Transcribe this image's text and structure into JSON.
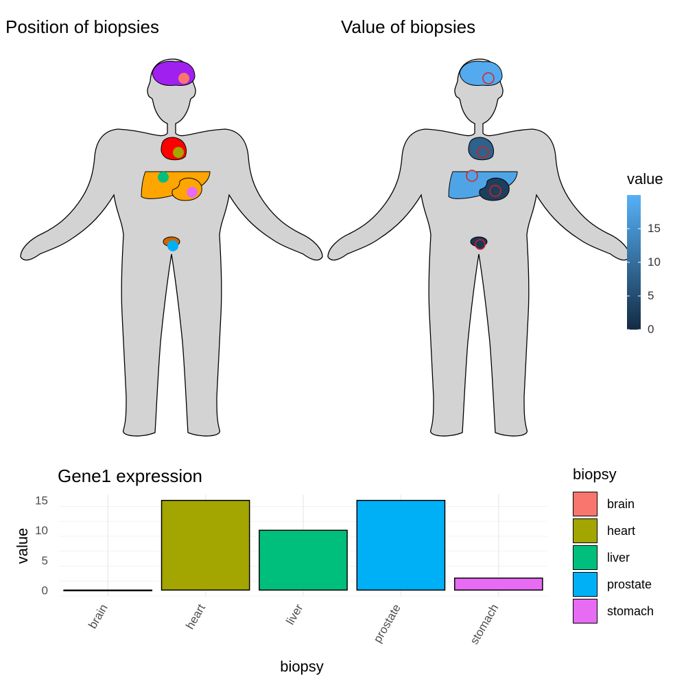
{
  "titles": {
    "left": "Position of biopsies",
    "right": "Value of biopsies",
    "bottom": "Gene1 expression"
  },
  "colors": {
    "body_fill": "#d3d3d3",
    "brain_region": "#a020f0",
    "heart_region": "#ff0000",
    "liver_region": "#ffa500",
    "stomach_region": "#ffa500",
    "prostate_region": "#cd6600",
    "gradient_low": "#132b43",
    "gradient_high": "#56b1f7",
    "value_marker_outline": "#e41a1c"
  },
  "value_legend": {
    "title": "value",
    "ticks": [
      "0",
      "5",
      "10",
      "15"
    ],
    "range": [
      0,
      20
    ]
  },
  "biopsy_legend": {
    "title": "biopsy",
    "items": [
      {
        "label": "brain",
        "color": "#f8766d"
      },
      {
        "label": "heart",
        "color": "#a3a500"
      },
      {
        "label": "liver",
        "color": "#00bf7d"
      },
      {
        "label": "prostate",
        "color": "#00b0f6"
      },
      {
        "label": "stomach",
        "color": "#e76bf3"
      }
    ]
  },
  "organ_values": {
    "brain": 19,
    "heart": 8,
    "liver": 18,
    "stomach": 3,
    "prostate": 2
  },
  "chart_data": {
    "type": "bar",
    "title": "Gene1 expression",
    "xlabel": "biopsy",
    "ylabel": "value",
    "categories": [
      "brain",
      "heart",
      "liver",
      "prostate",
      "stomach"
    ],
    "values": [
      0,
      15,
      10,
      15,
      2
    ],
    "colors": [
      "#f8766d",
      "#a3a500",
      "#00bf7d",
      "#00b0f6",
      "#e76bf3"
    ],
    "ylim": [
      -1,
      16
    ],
    "yticks": [
      0,
      5,
      10,
      15
    ],
    "grid": true,
    "legend": "right"
  }
}
